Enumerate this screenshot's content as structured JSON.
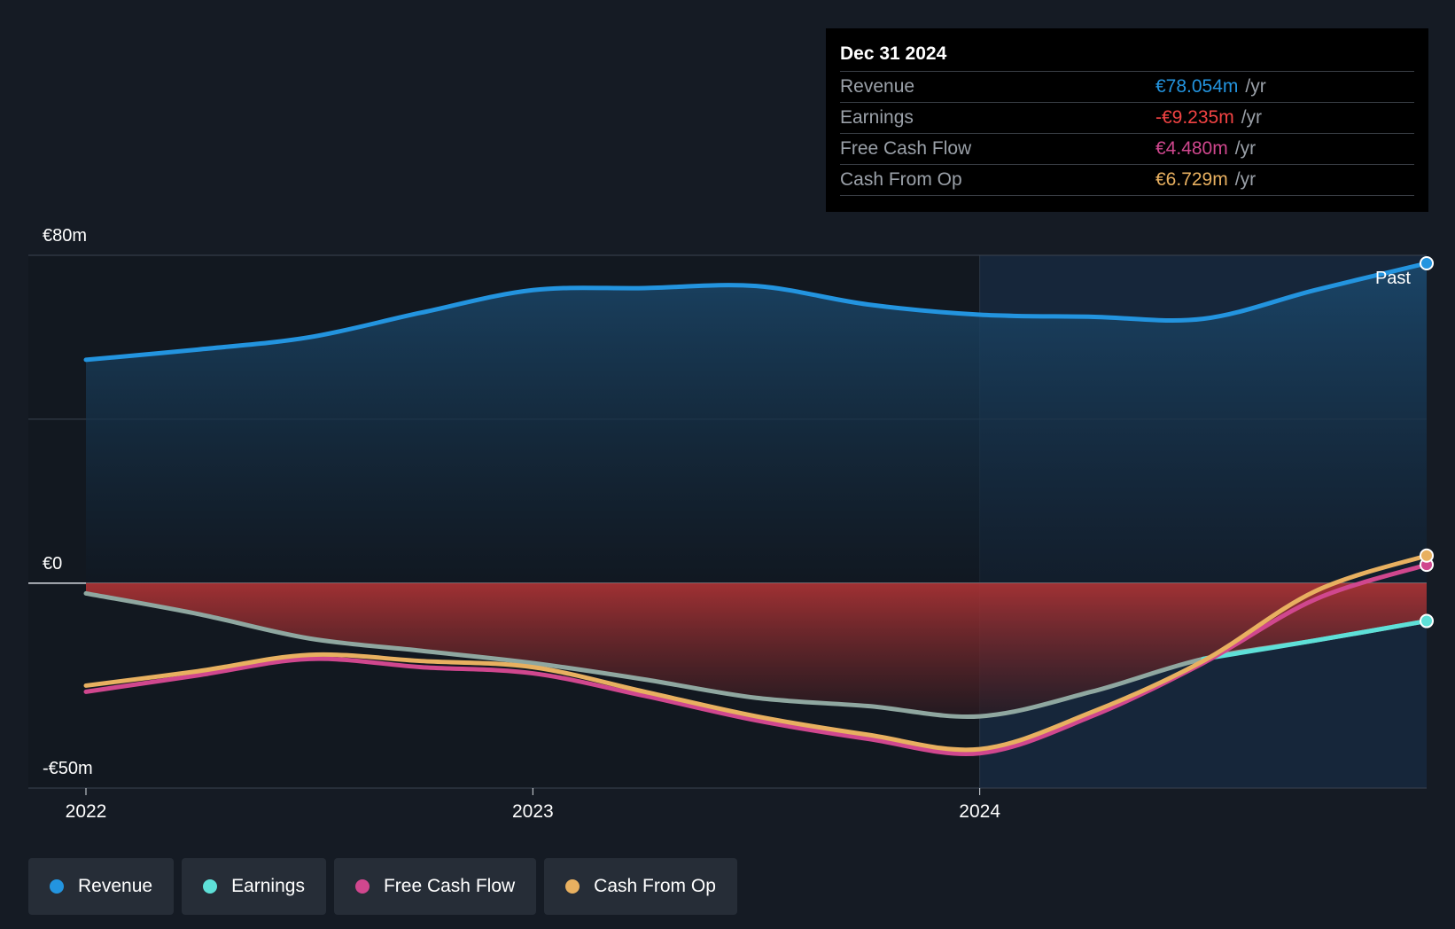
{
  "chart_data": {
    "type": "area",
    "title": "",
    "xlabel": "",
    "ylabel": "",
    "ylim": [
      -50,
      80
    ],
    "y_tick_labels": [
      "€80m",
      "€0",
      "-€50m"
    ],
    "x_tick_labels": [
      "2022",
      "2023",
      "2024"
    ],
    "x_ticks": [
      2022.0,
      2023.0,
      2024.0
    ],
    "xlim": [
      2021.87,
      2025.0
    ],
    "past_label": "Past",
    "x": [
      2022.0,
      2022.25,
      2022.5,
      2022.75,
      2023.0,
      2023.25,
      2023.5,
      2023.75,
      2024.0,
      2024.25,
      2024.5,
      2024.75,
      2025.0
    ],
    "series": [
      {
        "name": "Revenue",
        "color": "#2394df",
        "values": [
          54.5,
          57.0,
          60.0,
          66.0,
          71.5,
          72.0,
          72.5,
          68.0,
          65.5,
          65.0,
          64.5,
          71.5,
          78.054
        ]
      },
      {
        "name": "Earnings",
        "color": "#5ee0d8",
        "values": [
          -2.5,
          -7.5,
          -13.5,
          -16.5,
          -19.5,
          -23.5,
          -28.0,
          -30.0,
          -32.5,
          -26.5,
          -18.5,
          -14.0,
          -9.235
        ]
      },
      {
        "name": "Free Cash Flow",
        "color": "#d0478e",
        "values": [
          -26.5,
          -22.5,
          -18.5,
          -20.5,
          -22.0,
          -27.5,
          -33.5,
          -38.0,
          -41.5,
          -32.5,
          -19.5,
          -4.0,
          4.48
        ]
      },
      {
        "name": "Cash From Op",
        "color": "#e8b060",
        "values": [
          -25.0,
          -21.5,
          -17.5,
          -19.0,
          -20.5,
          -26.5,
          -32.5,
          -37.0,
          -40.5,
          -31.5,
          -19.0,
          -2.0,
          6.729
        ]
      }
    ]
  },
  "tooltip": {
    "date": "Dec 31 2024",
    "unit": "/yr",
    "rows": [
      {
        "name": "Revenue",
        "value": "€78.054m",
        "color": "#2394df"
      },
      {
        "name": "Earnings",
        "value": "-€9.235m",
        "color": "#f24343"
      },
      {
        "name": "Free Cash Flow",
        "value": "€4.480m",
        "color": "#d0478e"
      },
      {
        "name": "Cash From Op",
        "value": "€6.729m",
        "color": "#e8b060"
      }
    ]
  },
  "legend": [
    {
      "label": "Revenue",
      "color": "#2394df"
    },
    {
      "label": "Earnings",
      "color": "#5ee0d8"
    },
    {
      "label": "Free Cash Flow",
      "color": "#d0478e"
    },
    {
      "label": "Cash From Op",
      "color": "#e8b060"
    }
  ]
}
